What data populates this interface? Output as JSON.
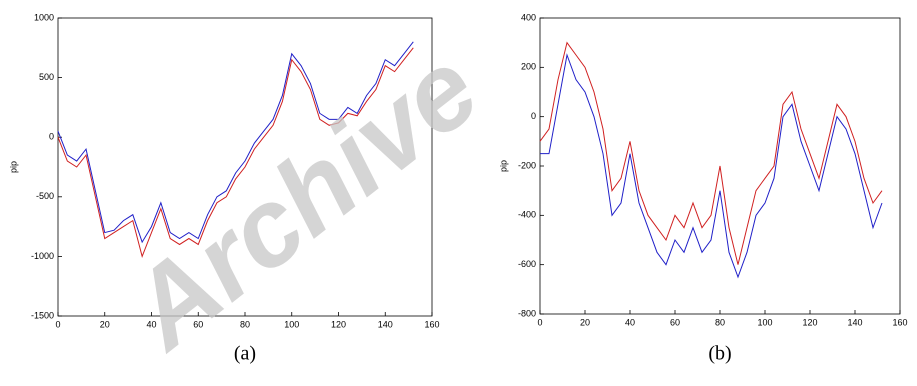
{
  "chart_data": [
    {
      "type": "line",
      "caption": "(a)",
      "ylabel": "pip",
      "x": [
        0,
        4,
        8,
        12,
        16,
        20,
        24,
        28,
        32,
        36,
        40,
        44,
        48,
        52,
        56,
        60,
        64,
        68,
        72,
        76,
        80,
        84,
        88,
        92,
        96,
        100,
        104,
        108,
        112,
        116,
        120,
        124,
        128,
        132,
        136,
        140,
        144,
        148,
        152
      ],
      "series": [
        {
          "color": "#d02020",
          "values": [
            0,
            -200,
            -250,
            -150,
            -500,
            -850,
            -800,
            -750,
            -700,
            -1000,
            -800,
            -600,
            -850,
            -900,
            -850,
            -900,
            -700,
            -550,
            -500,
            -350,
            -250,
            -100,
            0,
            100,
            300,
            650,
            550,
            400,
            150,
            100,
            120,
            200,
            180,
            300,
            400,
            600,
            550,
            650,
            750
          ]
        },
        {
          "color": "#2020c8",
          "values": [
            50,
            -150,
            -200,
            -100,
            -450,
            -800,
            -780,
            -700,
            -650,
            -880,
            -750,
            -550,
            -800,
            -850,
            -800,
            -850,
            -650,
            -500,
            -450,
            -300,
            -200,
            -50,
            50,
            150,
            350,
            700,
            600,
            450,
            200,
            150,
            150,
            250,
            200,
            350,
            450,
            650,
            600,
            700,
            800
          ]
        }
      ],
      "xlim": [
        0,
        160
      ],
      "xticks": [
        0,
        20,
        40,
        60,
        80,
        100,
        120,
        140,
        160
      ],
      "ylim": [
        -1500,
        1000
      ],
      "yticks": [
        -1500,
        -1000,
        -500,
        0,
        500,
        1000
      ]
    },
    {
      "type": "line",
      "caption": "(b)",
      "ylabel": "pip",
      "x": [
        0,
        4,
        8,
        12,
        16,
        20,
        24,
        28,
        32,
        36,
        40,
        44,
        48,
        52,
        56,
        60,
        64,
        68,
        72,
        76,
        80,
        84,
        88,
        92,
        96,
        100,
        104,
        108,
        112,
        116,
        120,
        124,
        128,
        132,
        136,
        140,
        144,
        148,
        152
      ],
      "series": [
        {
          "color": "#d02020",
          "values": [
            -100,
            -50,
            150,
            300,
            250,
            200,
            100,
            -50,
            -300,
            -250,
            -100,
            -300,
            -400,
            -450,
            -500,
            -400,
            -450,
            -350,
            -450,
            -400,
            -200,
            -450,
            -600,
            -450,
            -300,
            -250,
            -200,
            50,
            100,
            -50,
            -150,
            -250,
            -100,
            50,
            0,
            -100,
            -250,
            -350,
            -300
          ]
        },
        {
          "color": "#2020c8",
          "values": [
            -150,
            -150,
            50,
            250,
            150,
            100,
            0,
            -150,
            -400,
            -350,
            -150,
            -350,
            -450,
            -550,
            -600,
            -500,
            -550,
            -450,
            -550,
            -500,
            -300,
            -550,
            -650,
            -550,
            -400,
            -350,
            -250,
            0,
            50,
            -100,
            -200,
            -300,
            -150,
            0,
            -50,
            -150,
            -300,
            -450,
            -350
          ]
        }
      ],
      "xlim": [
        0,
        160
      ],
      "xticks": [
        0,
        20,
        40,
        60,
        80,
        100,
        120,
        140,
        160
      ],
      "ylim": [
        -800,
        400
      ],
      "yticks": [
        -800,
        -600,
        -400,
        -200,
        0,
        200,
        400
      ]
    }
  ],
  "watermark": "Archive"
}
